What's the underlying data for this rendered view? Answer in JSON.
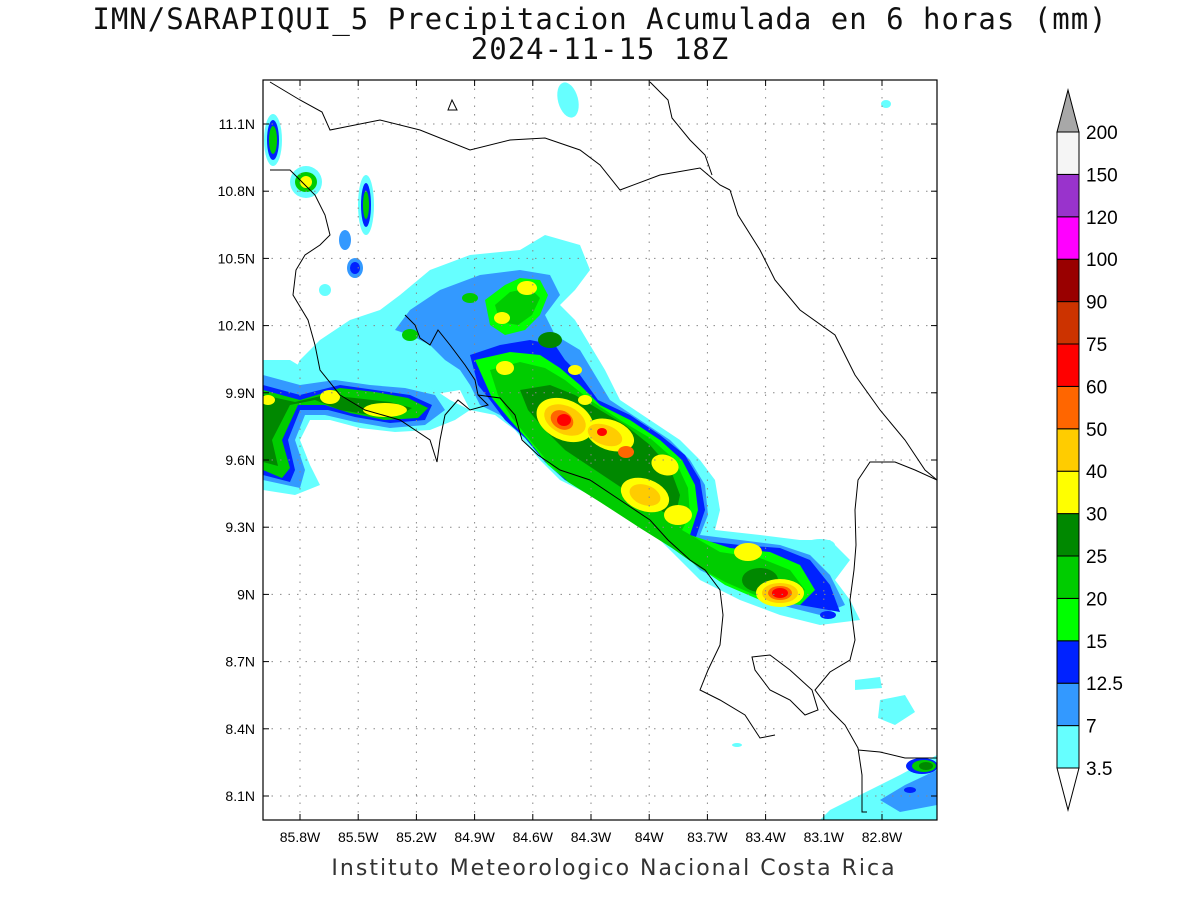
{
  "title": {
    "line1": "IMN/SARAPIQUI_5 Precipitacion Acumulada en 6 horas (mm)",
    "line2": "2024-11-15 18Z"
  },
  "footer": "Instituto Meteorologico Nacional Costa Rica",
  "map": {
    "lon_range": [
      -86.0,
      -82.6
    ],
    "lat_range": [
      8.0,
      11.3
    ],
    "lat_ticks": [
      "11.1N",
      "10.8N",
      "10.5N",
      "10.2N",
      "9.9N",
      "9.6N",
      "9.3N",
      "9N",
      "8.7N",
      "8.4N",
      "8.1N"
    ],
    "lon_ticks": [
      "85.8W",
      "85.5W",
      "85.2W",
      "84.9W",
      "84.6W",
      "84.3W",
      "84W",
      "83.7W",
      "83.4W",
      "83.1W",
      "82.8W"
    ],
    "grid": true,
    "grid_style": "dotted"
  },
  "colorbar": {
    "orientation": "vertical",
    "placement": "right",
    "levels": [
      "3.5",
      "7",
      "12.5",
      "15",
      "20",
      "25",
      "30",
      "40",
      "50",
      "60",
      "75",
      "90",
      "100",
      "120",
      "150",
      "200"
    ],
    "colors": [
      "#66ffff",
      "#3399ff",
      "#0022ff",
      "#00ff00",
      "#00cc00",
      "#008800",
      "#ffff00",
      "#ffcc00",
      "#ff6600",
      "#ff0000",
      "#cc3300",
      "#990000",
      "#ff00ff",
      "#9933cc",
      "#f5f5f5",
      "#a8a8a8"
    ],
    "under_color": "#ffffff",
    "over_color": "#a8a8a8"
  },
  "precip_colors": {
    "c3": "#66ffff",
    "c7": "#3399ff",
    "c12": "#0022ff",
    "c15": "#00ff00",
    "c20": "#00cc00",
    "c25": "#008800",
    "c30": "#ffff00",
    "c40": "#ffcc00",
    "c50": "#ff6600",
    "c60": "#ff0000"
  }
}
